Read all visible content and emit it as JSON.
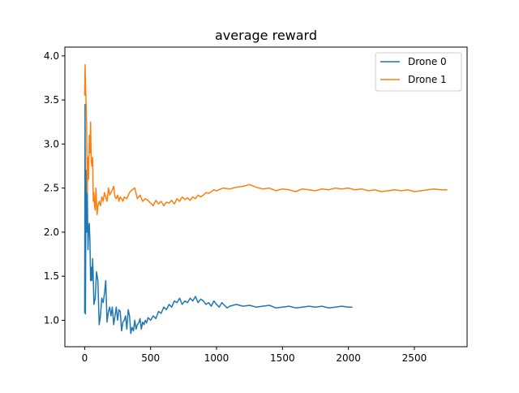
{
  "chart_data": {
    "type": "line",
    "title": "average reward",
    "xlabel": "",
    "ylabel": "",
    "xlim": [
      -150,
      2900
    ],
    "ylim": [
      0.7,
      4.1
    ],
    "xticks": [
      0,
      500,
      1000,
      1500,
      2000,
      2500
    ],
    "yticks": [
      1.0,
      1.5,
      2.0,
      2.5,
      3.0,
      3.5,
      4.0
    ],
    "xtick_labels": [
      "0",
      "500",
      "1000",
      "1500",
      "2000",
      "2500"
    ],
    "ytick_labels": [
      "1.0",
      "1.5",
      "2.0",
      "2.5",
      "3.0",
      "3.5",
      "4.0"
    ],
    "grid": false,
    "legend_position": "top-right",
    "series": [
      {
        "name": "Drone 0",
        "color": "#1f77b4",
        "x": [
          0,
          3,
          6,
          10,
          15,
          20,
          25,
          30,
          35,
          40,
          45,
          50,
          55,
          60,
          65,
          70,
          80,
          90,
          100,
          110,
          120,
          130,
          140,
          150,
          160,
          170,
          180,
          190,
          200,
          210,
          220,
          230,
          240,
          250,
          260,
          270,
          280,
          290,
          300,
          310,
          320,
          330,
          340,
          350,
          360,
          370,
          380,
          390,
          400,
          410,
          420,
          430,
          440,
          450,
          460,
          470,
          480,
          500,
          520,
          540,
          560,
          580,
          600,
          620,
          640,
          660,
          680,
          700,
          720,
          740,
          760,
          780,
          800,
          820,
          840,
          860,
          880,
          900,
          920,
          940,
          960,
          980,
          1000,
          1020,
          1040,
          1060,
          1080,
          1100,
          1150,
          1200,
          1250,
          1300,
          1350,
          1400,
          1450,
          1500,
          1550,
          1600,
          1650,
          1700,
          1750,
          1800,
          1850,
          1900,
          1950,
          2000,
          2030
        ],
        "y": [
          1.08,
          3.45,
          1.07,
          2.7,
          2.0,
          2.5,
          1.8,
          2.05,
          2.1,
          1.9,
          1.45,
          1.6,
          1.45,
          1.7,
          1.5,
          1.18,
          1.25,
          1.55,
          1.45,
          0.95,
          1.05,
          1.25,
          1.2,
          1.3,
          1.45,
          0.98,
          1.1,
          1.15,
          1.05,
          1.15,
          0.95,
          1.05,
          1.15,
          1.0,
          1.12,
          1.1,
          0.88,
          0.98,
          1.0,
          1.05,
          0.9,
          1.12,
          1.05,
          0.85,
          0.92,
          0.88,
          1.0,
          0.9,
          0.95,
          0.97,
          1.02,
          0.9,
          0.98,
          0.95,
          1.0,
          0.97,
          1.03,
          1.0,
          1.05,
          1.02,
          1.1,
          1.08,
          1.15,
          1.12,
          1.18,
          1.15,
          1.22,
          1.2,
          1.25,
          1.18,
          1.22,
          1.2,
          1.25,
          1.22,
          1.27,
          1.2,
          1.24,
          1.22,
          1.18,
          1.2,
          1.16,
          1.22,
          1.18,
          1.15,
          1.2,
          1.17,
          1.14,
          1.16,
          1.18,
          1.16,
          1.17,
          1.15,
          1.16,
          1.17,
          1.14,
          1.15,
          1.16,
          1.14,
          1.15,
          1.16,
          1.15,
          1.16,
          1.14,
          1.15,
          1.16,
          1.15,
          1.15
        ]
      },
      {
        "name": "Drone 1",
        "color": "#ff7f0e",
        "x": [
          0,
          3,
          6,
          10,
          15,
          20,
          25,
          30,
          35,
          40,
          45,
          50,
          55,
          60,
          65,
          70,
          75,
          80,
          85,
          90,
          95,
          100,
          110,
          120,
          130,
          140,
          150,
          160,
          170,
          180,
          190,
          200,
          210,
          220,
          230,
          240,
          250,
          260,
          270,
          280,
          290,
          300,
          320,
          340,
          360,
          380,
          400,
          420,
          440,
          460,
          480,
          500,
          520,
          540,
          560,
          580,
          600,
          620,
          640,
          660,
          680,
          700,
          720,
          740,
          760,
          780,
          800,
          820,
          840,
          860,
          880,
          900,
          920,
          940,
          960,
          980,
          1000,
          1050,
          1100,
          1150,
          1200,
          1250,
          1300,
          1350,
          1400,
          1450,
          1500,
          1550,
          1600,
          1650,
          1700,
          1750,
          1800,
          1850,
          1900,
          1950,
          2000,
          2050,
          2100,
          2150,
          2200,
          2250,
          2300,
          2350,
          2400,
          2450,
          2500,
          2550,
          2600,
          2650,
          2700,
          2750
        ],
        "y": [
          3.55,
          3.9,
          3.7,
          3.5,
          3.25,
          2.45,
          2.85,
          2.6,
          3.1,
          2.9,
          3.25,
          2.8,
          2.75,
          2.85,
          2.35,
          2.45,
          2.3,
          2.25,
          2.5,
          2.35,
          2.2,
          2.3,
          2.35,
          2.3,
          2.4,
          2.35,
          2.45,
          2.4,
          2.35,
          2.5,
          2.42,
          2.45,
          2.48,
          2.52,
          2.4,
          2.38,
          2.42,
          2.35,
          2.4,
          2.38,
          2.35,
          2.4,
          2.38,
          2.45,
          2.48,
          2.5,
          2.38,
          2.42,
          2.35,
          2.38,
          2.36,
          2.33,
          2.3,
          2.36,
          2.32,
          2.35,
          2.3,
          2.34,
          2.33,
          2.36,
          2.32,
          2.38,
          2.35,
          2.4,
          2.37,
          2.39,
          2.36,
          2.4,
          2.38,
          2.42,
          2.4,
          2.42,
          2.45,
          2.44,
          2.46,
          2.48,
          2.47,
          2.5,
          2.49,
          2.51,
          2.52,
          2.54,
          2.51,
          2.49,
          2.5,
          2.47,
          2.49,
          2.48,
          2.46,
          2.49,
          2.48,
          2.47,
          2.49,
          2.48,
          2.5,
          2.49,
          2.5,
          2.48,
          2.49,
          2.47,
          2.48,
          2.46,
          2.47,
          2.48,
          2.47,
          2.48,
          2.46,
          2.47,
          2.48,
          2.49,
          2.48,
          2.48
        ]
      }
    ]
  }
}
